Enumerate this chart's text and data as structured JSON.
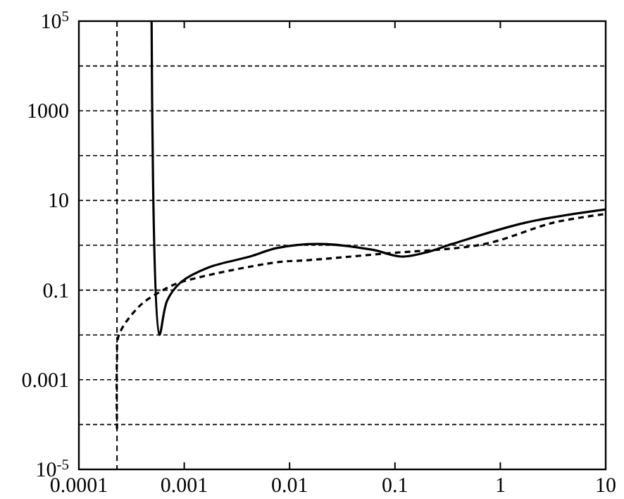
{
  "chart_data": {
    "type": "line",
    "log": "xy",
    "grid": "y",
    "xlim": [
      0.0001,
      10
    ],
    "xticks": [
      0.0001,
      0.001,
      0.01,
      0.1,
      1,
      10
    ],
    "ylim": [
      1e-05,
      100000
    ],
    "yticks": [
      {
        "value": 1e-05,
        "label": "10$^{-5}$"
      },
      {
        "value": 0.0001,
        "label": null
      },
      0.001,
      {
        "value": 0.01,
        "label": null
      },
      0.1,
      {
        "value": 1,
        "label": null
      },
      10,
      {
        "value": 100,
        "label": null
      },
      1000,
      {
        "value": 10000,
        "label": null
      },
      {
        "value": 100000,
        "label": "10$^{5}$"
      }
    ],
    "ref_lines": [
      {
        "axis": "x",
        "value": 0.00023,
        "label": null,
        "color": "#000000",
        "line_style": "dashed"
      }
    ],
    "series": [
      {
        "color": "#000000",
        "line_style": "solid",
        "x": [
          0.00049,
          0.00058,
          0.00069,
          0.00093,
          0.0017,
          0.0042,
          0.0076,
          0.019,
          0.06,
          0.115,
          0.2,
          0.35,
          1.74,
          10
        ],
        "values": [
          100000,
          0.01,
          0.059,
          0.15,
          0.32,
          0.56,
          0.87,
          1.07,
          0.8,
          0.56,
          0.7,
          1.07,
          3.2,
          6.3
        ]
      },
      {
        "color": "#000000",
        "line_style": "dashed",
        "x": [
          0.00023,
          0.00023,
          0.00024,
          0.00038,
          0.00063,
          0.00093,
          0.0076,
          0.014,
          0.078,
          0.71,
          3.2,
          10
        ],
        "values": [
          8e-05,
          0.003,
          0.01,
          0.045,
          0.1,
          0.15,
          0.42,
          0.46,
          0.65,
          1.07,
          3.2,
          5
        ]
      }
    ]
  }
}
